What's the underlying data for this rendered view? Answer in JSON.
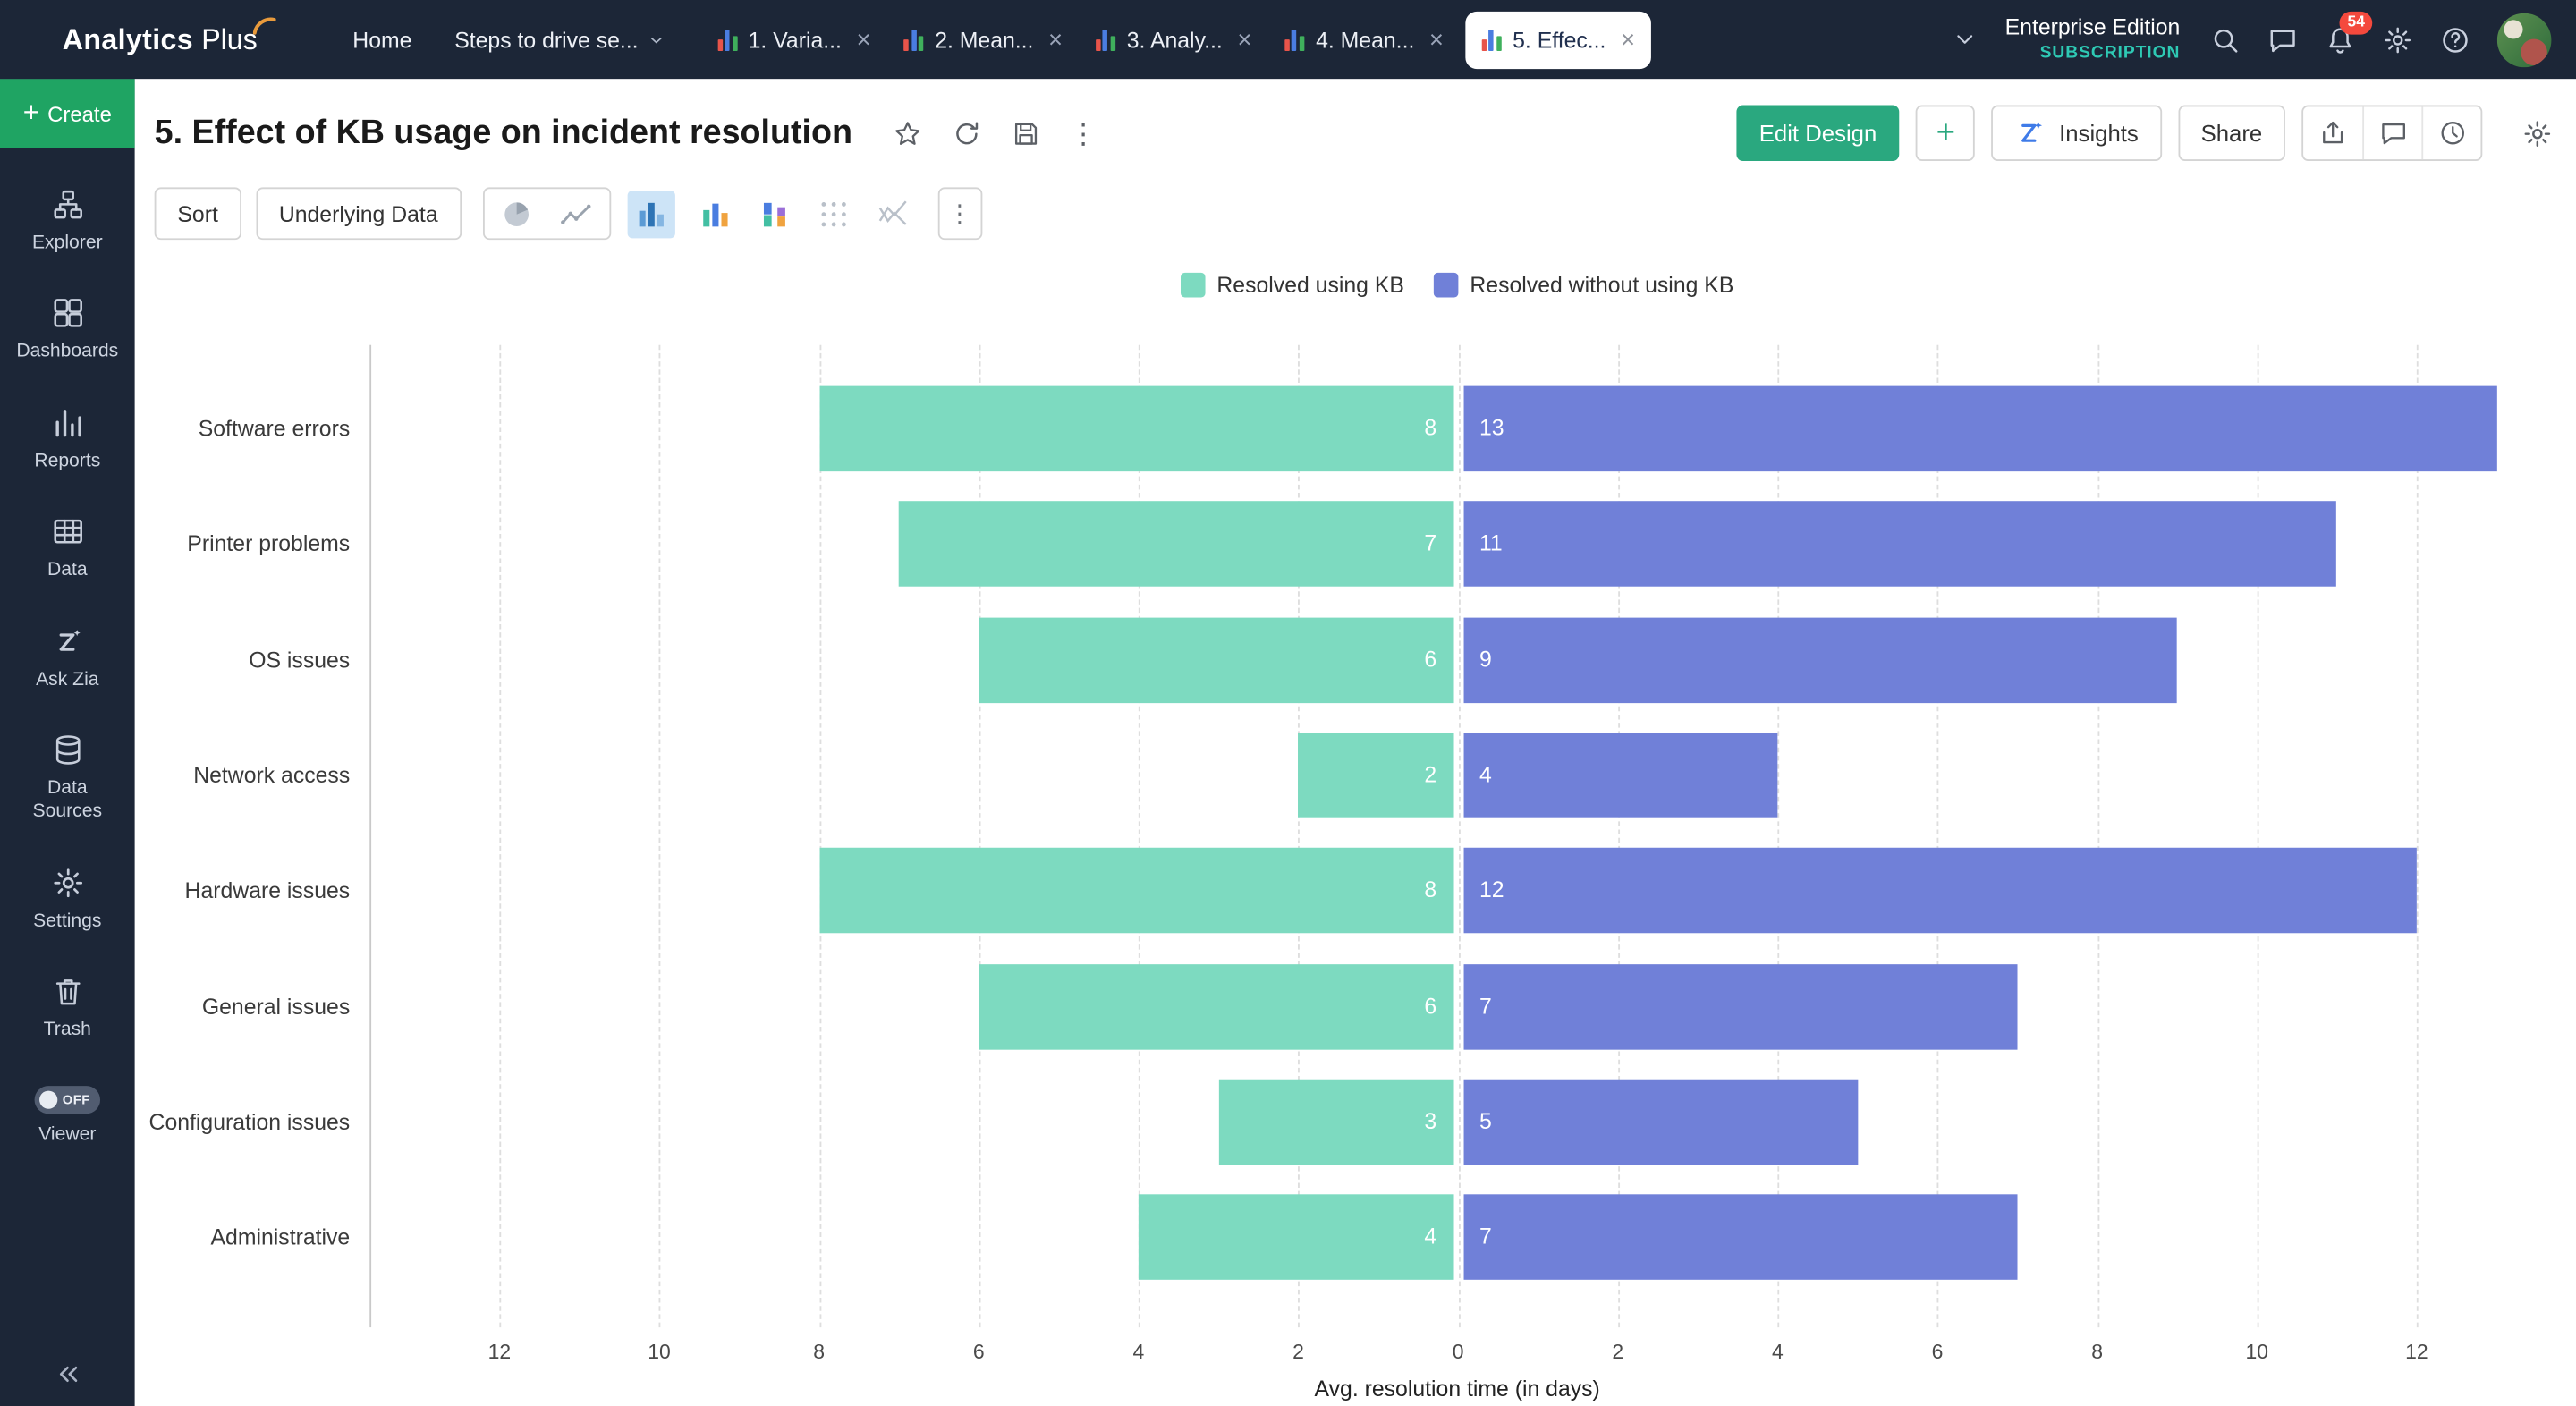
{
  "topbar": {
    "logo": {
      "part1": "Analytics",
      "part2": "Plus"
    },
    "home": "Home",
    "workspace_menu": "Steps to drive se...",
    "tabs": [
      {
        "label": "1. Varia...",
        "active": false
      },
      {
        "label": "2. Mean...",
        "active": false
      },
      {
        "label": "3. Analy...",
        "active": false
      },
      {
        "label": "4. Mean...",
        "active": false
      },
      {
        "label": "5. Effec...",
        "active": true
      }
    ],
    "edition": "Enterprise Edition",
    "subscription": "SUBSCRIPTION",
    "notifications_badge": "54",
    "icons": [
      "search-icon",
      "chat-icon",
      "bell-icon",
      "gear-icon",
      "help-icon",
      "avatar"
    ]
  },
  "sidebar": {
    "create_label": "Create",
    "items": [
      {
        "label": "Explorer",
        "icon": "explorer-icon"
      },
      {
        "label": "Dashboards",
        "icon": "dashboards-icon"
      },
      {
        "label": "Reports",
        "icon": "reports-icon"
      },
      {
        "label": "Data",
        "icon": "data-icon"
      },
      {
        "label": "Ask Zia",
        "icon": "zia-icon"
      },
      {
        "label": "Data Sources",
        "icon": "data-sources-icon"
      },
      {
        "label": "Settings",
        "icon": "settings-icon"
      },
      {
        "label": "Trash",
        "icon": "trash-icon"
      }
    ],
    "viewer": {
      "label": "Viewer",
      "toggle": "OFF"
    }
  },
  "report": {
    "title": "5. Effect of KB usage on incident resolution",
    "actions": {
      "edit_design": "Edit Design",
      "add": "+",
      "insights": "Insights",
      "share": "Share"
    },
    "toolbar": {
      "sort": "Sort",
      "underlying_data": "Underlying Data",
      "chart_types": [
        {
          "icon": "pie-chart-icon",
          "selected": false
        },
        {
          "icon": "line-chart-icon",
          "selected": false
        },
        {
          "icon": "bar-chart-icon",
          "selected": true
        },
        {
          "icon": "column-chart-icon",
          "selected": false
        },
        {
          "icon": "stacked-chart-icon",
          "selected": false
        },
        {
          "icon": "scatter-chart-icon",
          "selected": false
        },
        {
          "icon": "web-chart-icon",
          "selected": false
        }
      ]
    }
  },
  "chart_data": {
    "type": "bar",
    "variant": "diverging-horizontal",
    "title": "5. Effect of KB usage on incident resolution",
    "categories": [
      "Software errors",
      "Printer problems",
      "OS issues",
      "Network access",
      "Hardware issues",
      "General issues",
      "Configuration issues",
      "Administrative"
    ],
    "series": [
      {
        "name": "Resolved using KB",
        "color": "#7ddac0",
        "direction": "left",
        "values": [
          8,
          7,
          6,
          2,
          8,
          6,
          3,
          4
        ]
      },
      {
        "name": "Resolved without using KB",
        "color": "#7080d8",
        "direction": "right",
        "values": [
          13,
          11,
          9,
          4,
          12,
          7,
          5,
          7
        ]
      }
    ],
    "xlabel": "Avg. resolution time (in days)",
    "x_ticks": [
      12,
      10,
      8,
      6,
      4,
      2,
      0,
      2,
      4,
      6,
      8,
      10,
      12
    ],
    "xlim_each_side": [
      0,
      12
    ],
    "grid": "dashed-vertical",
    "legend_position": "top-center",
    "value_labels": "inside-near-baseline"
  }
}
